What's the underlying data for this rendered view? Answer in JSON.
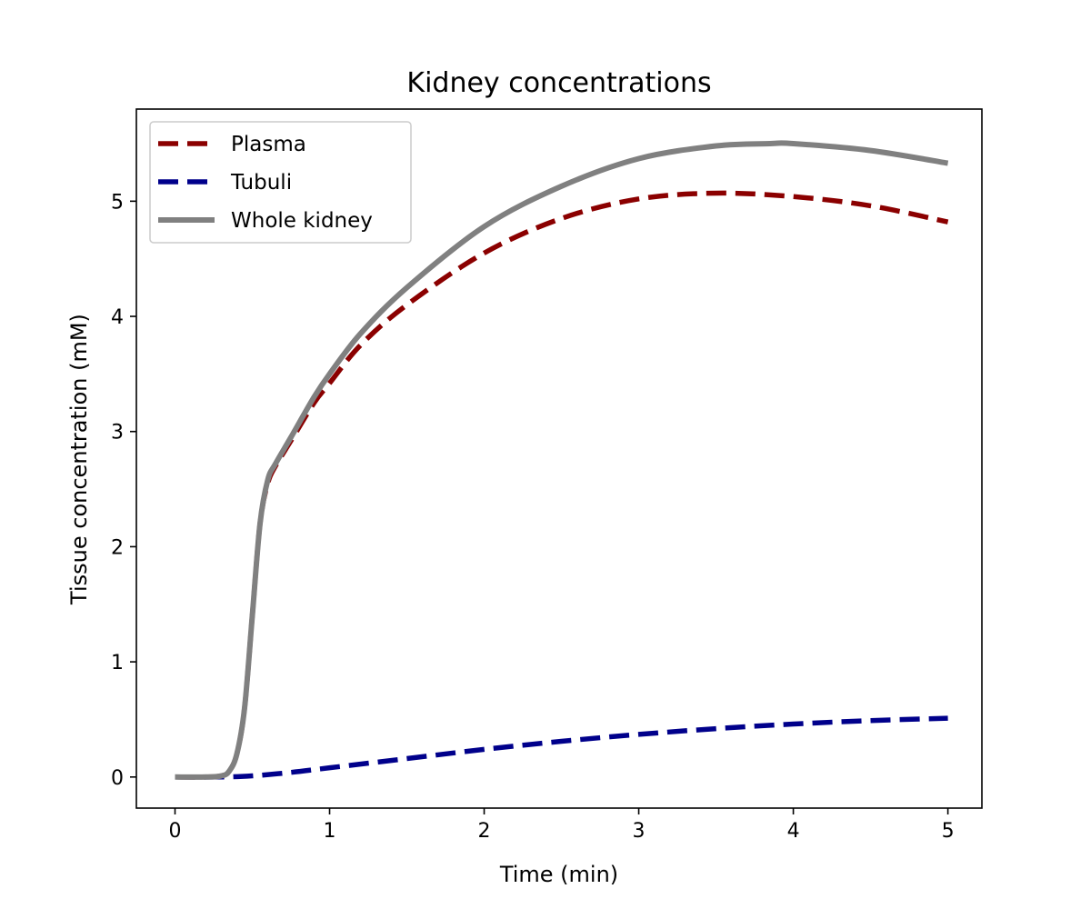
{
  "chart_data": {
    "type": "line",
    "title": "Kidney concentrations",
    "xlabel": "Time (min)",
    "ylabel": "Tissue concentration (mM)",
    "xlim": [
      -0.25,
      5.22
    ],
    "ylim": [
      -0.27,
      5.8
    ],
    "xticks": [
      0,
      1,
      2,
      3,
      4,
      5
    ],
    "yticks": [
      0,
      1,
      2,
      3,
      4,
      5
    ],
    "grid": false,
    "legend_position": "upper-left",
    "series": [
      {
        "name": "Plasma",
        "color": "#8b0000",
        "style": "dashed",
        "x": [
          0,
          0.2,
          0.3,
          0.35,
          0.4,
          0.45,
          0.5,
          0.55,
          0.6,
          0.65,
          0.75,
          0.9,
          1.0,
          1.2,
          1.5,
          2.0,
          2.5,
          3.0,
          3.5,
          4.0,
          4.5,
          5.0
        ],
        "y": [
          0,
          0,
          0.01,
          0.05,
          0.2,
          0.6,
          1.4,
          2.2,
          2.55,
          2.7,
          2.92,
          3.25,
          3.42,
          3.75,
          4.1,
          4.55,
          4.85,
          5.02,
          5.07,
          5.04,
          4.96,
          4.82
        ]
      },
      {
        "name": "Tubuli",
        "color": "#00008b",
        "style": "dashed",
        "x": [
          0,
          0.3,
          0.5,
          0.75,
          1.0,
          1.5,
          2.0,
          2.5,
          3.0,
          3.5,
          4.0,
          4.5,
          5.0
        ],
        "y": [
          0,
          0,
          0.01,
          0.04,
          0.08,
          0.16,
          0.24,
          0.31,
          0.37,
          0.42,
          0.46,
          0.49,
          0.51
        ]
      },
      {
        "name": "Whole kidney",
        "color": "#808080",
        "style": "solid",
        "x": [
          0,
          0.2,
          0.3,
          0.35,
          0.4,
          0.45,
          0.5,
          0.55,
          0.6,
          0.65,
          0.75,
          0.9,
          1.0,
          1.2,
          1.5,
          2.0,
          2.5,
          3.0,
          3.5,
          3.85,
          4.0,
          4.5,
          5.0
        ],
        "y": [
          0,
          0,
          0.01,
          0.05,
          0.2,
          0.6,
          1.4,
          2.2,
          2.58,
          2.72,
          2.95,
          3.3,
          3.5,
          3.85,
          4.25,
          4.78,
          5.13,
          5.37,
          5.48,
          5.5,
          5.5,
          5.44,
          5.33
        ]
      }
    ]
  }
}
